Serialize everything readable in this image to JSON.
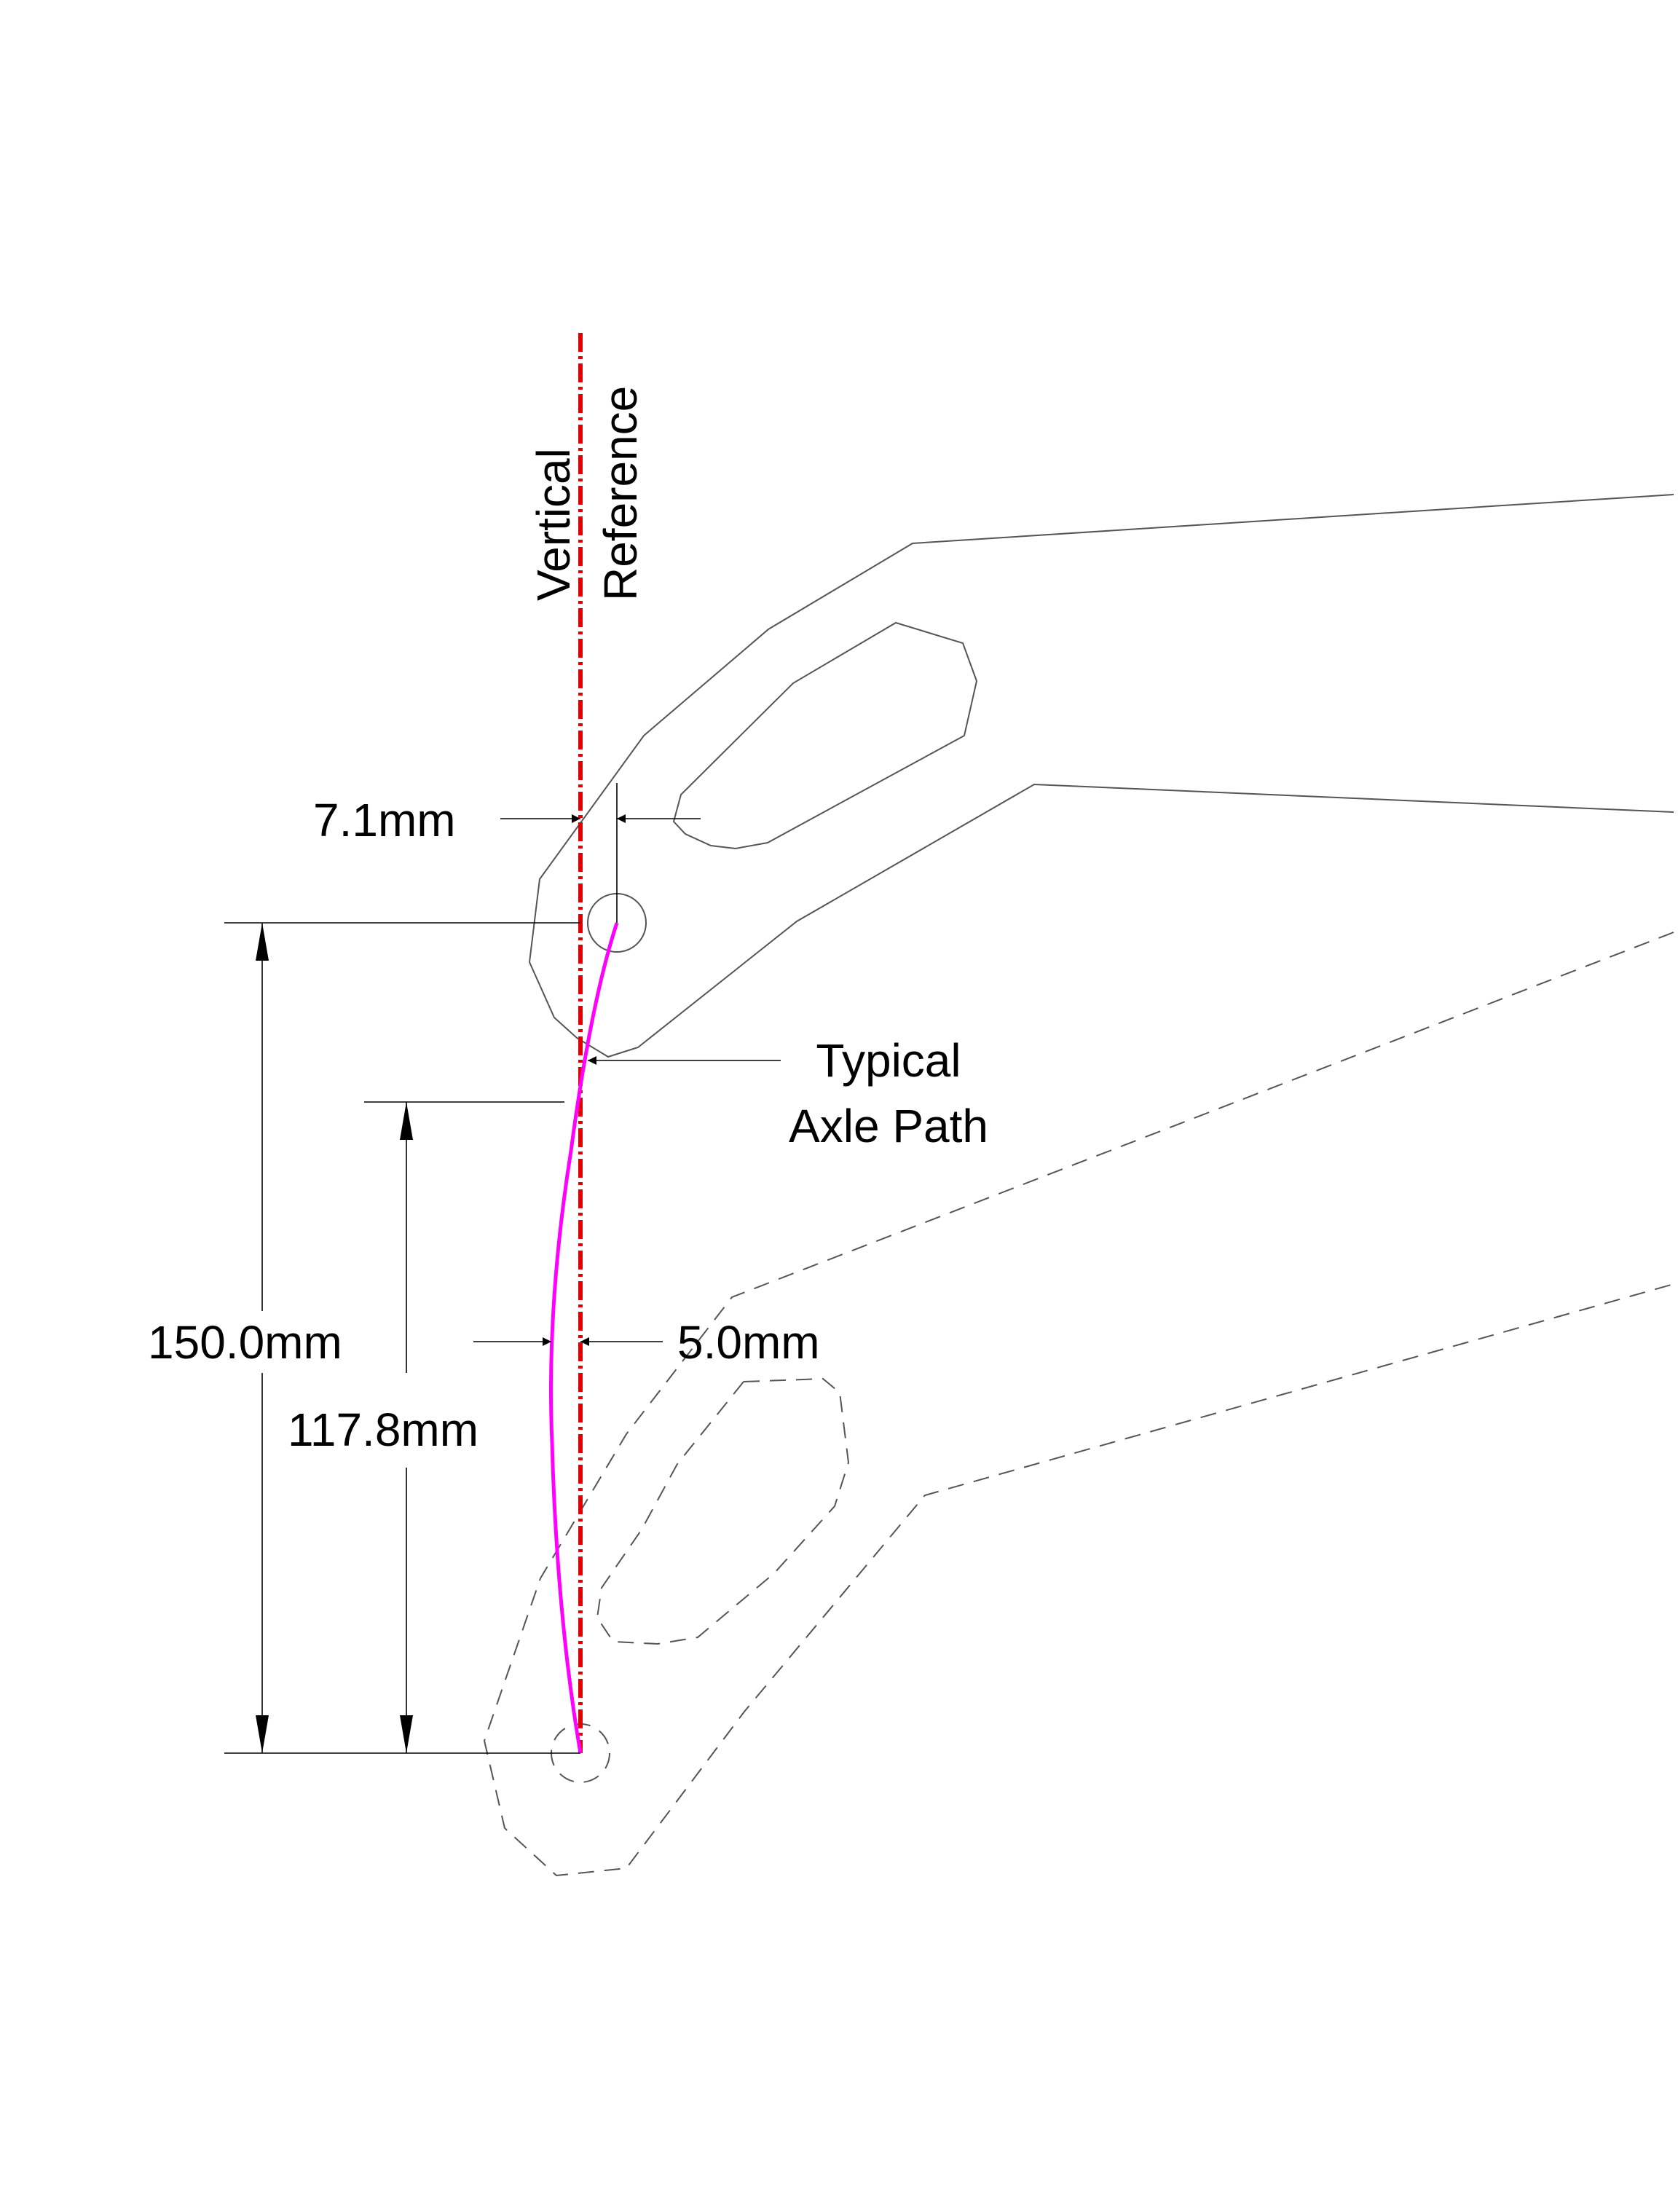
{
  "diagram": {
    "labels": {
      "vertical_reference_line1": "Vertical",
      "vertical_reference_line2": "Reference",
      "top_offset": "7.1mm",
      "axle_path_line1": "Typical",
      "axle_path_line2": "Axle Path",
      "total_travel": "150.0mm",
      "partial_travel": "117.8mm",
      "max_offset": "5.0mm"
    },
    "colors": {
      "reference_line": "#e00000",
      "axle_path": "#ff00ff",
      "linework": "#555555",
      "dimensions": "#000000"
    },
    "measurements_mm": {
      "top_offset": 7.1,
      "total_travel": 150.0,
      "partial_travel": 117.8,
      "max_offset": 5.0
    }
  }
}
